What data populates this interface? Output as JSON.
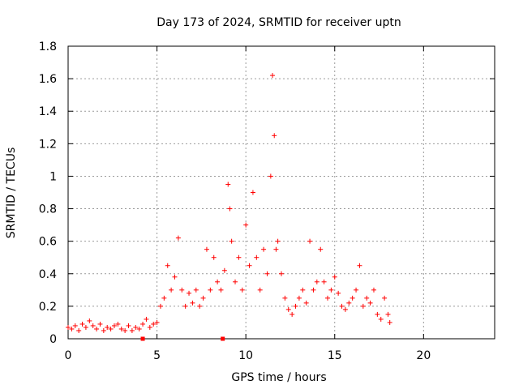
{
  "chart_data": {
    "type": "scatter",
    "title": "Day 173 of 2024, SRMTID for receiver uptn",
    "xlabel": "GPS time / hours",
    "ylabel": "SRMTID / TECUs",
    "xlim": [
      0,
      24
    ],
    "ylim": [
      0,
      1.8
    ],
    "xticks": [
      0,
      5,
      10,
      15,
      20
    ],
    "xtick_labels": [
      "0",
      "5",
      "10",
      "15",
      "20"
    ],
    "yticks": [
      0,
      0.2,
      0.4,
      0.6,
      0.8,
      1.0,
      1.2,
      1.4,
      1.6,
      1.8
    ],
    "ytick_labels": [
      "0",
      "0.2",
      "0.4",
      "0.6",
      "0.8",
      "1",
      "1.2",
      "1.4",
      "1.6",
      "1.8"
    ],
    "grid": true,
    "marker": "+",
    "color": "#ff0000",
    "series": [
      {
        "name": "SRMTID",
        "points": [
          [
            0.0,
            0.07
          ],
          [
            0.2,
            0.06
          ],
          [
            0.4,
            0.08
          ],
          [
            0.6,
            0.05
          ],
          [
            0.8,
            0.09
          ],
          [
            1.0,
            0.07
          ],
          [
            1.2,
            0.11
          ],
          [
            1.4,
            0.08
          ],
          [
            1.6,
            0.06
          ],
          [
            1.8,
            0.09
          ],
          [
            2.0,
            0.05
          ],
          [
            2.2,
            0.07
          ],
          [
            2.4,
            0.06
          ],
          [
            2.6,
            0.08
          ],
          [
            2.8,
            0.09
          ],
          [
            3.0,
            0.06
          ],
          [
            3.2,
            0.05
          ],
          [
            3.4,
            0.08
          ],
          [
            3.6,
            0.05
          ],
          [
            3.8,
            0.07
          ],
          [
            4.0,
            0.06
          ],
          [
            4.2,
            0.09
          ],
          [
            4.4,
            0.12
          ],
          [
            4.6,
            0.07
          ],
          [
            4.8,
            0.09
          ],
          [
            5.0,
            0.1
          ],
          [
            5.2,
            0.2
          ],
          [
            5.4,
            0.25
          ],
          [
            5.6,
            0.45
          ],
          [
            5.8,
            0.3
          ],
          [
            6.0,
            0.38
          ],
          [
            6.2,
            0.62
          ],
          [
            6.4,
            0.3
          ],
          [
            6.6,
            0.2
          ],
          [
            6.8,
            0.28
          ],
          [
            7.0,
            0.22
          ],
          [
            7.2,
            0.3
          ],
          [
            7.4,
            0.2
          ],
          [
            7.6,
            0.25
          ],
          [
            7.8,
            0.55
          ],
          [
            8.0,
            0.3
          ],
          [
            8.2,
            0.5
          ],
          [
            8.4,
            0.35
          ],
          [
            8.6,
            0.3
          ],
          [
            8.8,
            0.42
          ],
          [
            9.0,
            0.95
          ],
          [
            9.1,
            0.8
          ],
          [
            9.2,
            0.6
          ],
          [
            9.4,
            0.35
          ],
          [
            9.6,
            0.5
          ],
          [
            9.8,
            0.3
          ],
          [
            10.0,
            0.7
          ],
          [
            10.2,
            0.45
          ],
          [
            10.4,
            0.9
          ],
          [
            10.6,
            0.5
          ],
          [
            10.8,
            0.3
          ],
          [
            11.0,
            0.55
          ],
          [
            11.2,
            0.4
          ],
          [
            11.4,
            1.0
          ],
          [
            11.5,
            1.62
          ],
          [
            11.6,
            1.25
          ],
          [
            11.7,
            0.55
          ],
          [
            11.8,
            0.6
          ],
          [
            12.0,
            0.4
          ],
          [
            12.2,
            0.25
          ],
          [
            12.4,
            0.18
          ],
          [
            12.6,
            0.15
          ],
          [
            12.8,
            0.2
          ],
          [
            13.0,
            0.25
          ],
          [
            13.2,
            0.3
          ],
          [
            13.4,
            0.22
          ],
          [
            13.6,
            0.6
          ],
          [
            13.8,
            0.3
          ],
          [
            14.0,
            0.35
          ],
          [
            14.2,
            0.55
          ],
          [
            14.4,
            0.35
          ],
          [
            14.6,
            0.25
          ],
          [
            14.8,
            0.3
          ],
          [
            15.0,
            0.38
          ],
          [
            15.2,
            0.28
          ],
          [
            15.4,
            0.2
          ],
          [
            15.6,
            0.18
          ],
          [
            15.8,
            0.22
          ],
          [
            16.0,
            0.25
          ],
          [
            16.2,
            0.3
          ],
          [
            16.4,
            0.45
          ],
          [
            16.6,
            0.2
          ],
          [
            16.8,
            0.25
          ],
          [
            17.0,
            0.22
          ],
          [
            17.2,
            0.3
          ],
          [
            17.4,
            0.15
          ],
          [
            17.6,
            0.12
          ],
          [
            17.8,
            0.25
          ],
          [
            18.0,
            0.15
          ],
          [
            18.1,
            0.1
          ]
        ]
      }
    ],
    "outliers": [
      [
        4.2,
        0.0
      ],
      [
        8.7,
        0.0
      ]
    ]
  }
}
